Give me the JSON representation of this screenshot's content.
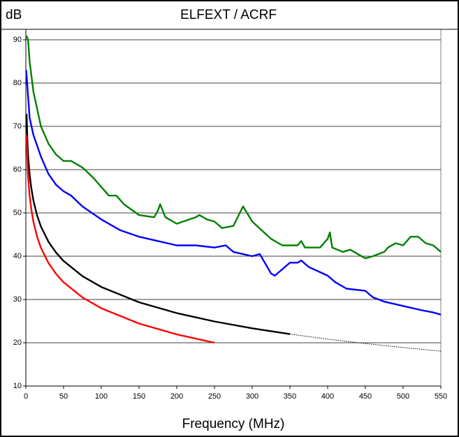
{
  "chart_data": {
    "type": "line",
    "title": "ELFEXT / ACRF",
    "y_label": "dB",
    "x_label": "Frequency (MHz)",
    "xlim": [
      0,
      550
    ],
    "ylim": [
      10,
      90
    ],
    "xticks": [
      0,
      50,
      100,
      150,
      200,
      250,
      300,
      350,
      400,
      450,
      500,
      550
    ],
    "yticks": [
      10,
      20,
      30,
      40,
      50,
      60,
      70,
      80,
      90
    ],
    "grid": true,
    "series": [
      {
        "color": "#008000",
        "style": "solid",
        "x": [
          0.5,
          3,
          5,
          10,
          20,
          30,
          40,
          50,
          60,
          75,
          90,
          100,
          110,
          120,
          130,
          150,
          170,
          175,
          178,
          185,
          200,
          225,
          230,
          240,
          250,
          260,
          275,
          285,
          288,
          300,
          325,
          340,
          360,
          365,
          370,
          390,
          400,
          403,
          406,
          420,
          430,
          440,
          450,
          460,
          475,
          480,
          490,
          500,
          510,
          520,
          530,
          540,
          550
        ],
        "values": [
          91,
          90,
          85,
          78,
          70,
          66,
          63.5,
          62,
          62,
          60.5,
          58,
          56,
          54,
          54,
          52,
          49.5,
          49,
          50.5,
          52,
          49,
          47.5,
          49,
          49.5,
          48.5,
          48,
          46.5,
          47,
          50.5,
          51.5,
          48,
          44,
          42.5,
          42.5,
          43.5,
          42,
          42,
          44,
          45.5,
          42,
          41,
          41.5,
          40.5,
          39.5,
          40,
          41,
          42,
          43,
          42.5,
          44.5,
          44.5,
          43,
          42.5,
          41
        ]
      },
      {
        "color": "#0000ff",
        "style": "solid",
        "x": [
          0.5,
          5,
          10,
          20,
          30,
          40,
          50,
          60,
          75,
          100,
          125,
          150,
          175,
          200,
          225,
          250,
          265,
          275,
          300,
          310,
          320,
          325,
          330,
          340,
          350,
          360,
          365,
          375,
          400,
          410,
          425,
          450,
          460,
          475,
          500,
          525,
          540,
          550
        ],
        "values": [
          83,
          72,
          68,
          63,
          59,
          56.5,
          55,
          54,
          51.5,
          48.5,
          46,
          44.5,
          43.5,
          42.5,
          42.5,
          42,
          42.5,
          41,
          40,
          40.5,
          37.5,
          36,
          35.5,
          37,
          38.5,
          38.5,
          39,
          37.5,
          35.5,
          34,
          32.5,
          32,
          30.5,
          29.5,
          28.5,
          27.5,
          27,
          26.5
        ]
      },
      {
        "color": "#000000",
        "style": "solid",
        "x": [
          1,
          2,
          3,
          5,
          7,
          10,
          15,
          20,
          30,
          40,
          50,
          75,
          100,
          150,
          200,
          250,
          300,
          350
        ],
        "values": [
          72.88,
          66.86,
          63.34,
          58.9,
          55.98,
          52.88,
          49.36,
          46.86,
          43.34,
          40.84,
          38.9,
          35.38,
          32.88,
          29.36,
          26.86,
          24.92,
          23.34,
          22
        ]
      },
      {
        "color": "#000000",
        "style": "dotted",
        "x": [
          350,
          400,
          450,
          500,
          550
        ],
        "values": [
          22,
          20.84,
          19.82,
          18.9,
          18.07
        ]
      },
      {
        "color": "#ff0000",
        "style": "solid",
        "x": [
          1,
          2,
          3,
          5,
          7,
          10,
          15,
          20,
          30,
          40,
          50,
          75,
          100,
          150,
          200,
          250
        ],
        "values": [
          67.96,
          61.94,
          58.42,
          53.98,
          51.06,
          47.96,
          44.44,
          41.94,
          38.42,
          35.92,
          33.98,
          30.46,
          27.96,
          24.44,
          21.94,
          20
        ]
      }
    ]
  }
}
